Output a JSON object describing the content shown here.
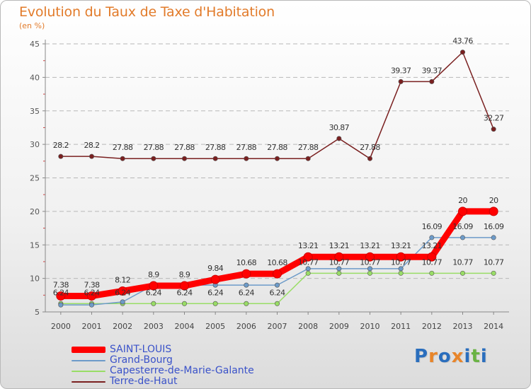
{
  "header": {
    "title": "Evolution du Taux de Taxe d'Habitation",
    "unit": "(en %)"
  },
  "chart_data": {
    "type": "line",
    "x": [
      "2000",
      "2001",
      "2002",
      "2003",
      "2004",
      "2005",
      "2006",
      "2007",
      "2008",
      "2009",
      "2010",
      "2011",
      "2012",
      "2013",
      "2014"
    ],
    "ylim": [
      5,
      45
    ],
    "yticks": [
      5,
      10,
      15,
      20,
      25,
      30,
      35,
      40,
      45
    ],
    "grid": "horizontal-dashed",
    "legend_position": "bottom-left",
    "series": [
      {
        "name": "SAINT-LOUIS",
        "color": "#ff0000",
        "values": [
          7.38,
          7.38,
          8.12,
          8.9,
          8.9,
          9.84,
          10.68,
          10.68,
          13.21,
          13.21,
          13.21,
          13.21,
          13.21,
          20,
          20
        ],
        "labels": [
          "7.38",
          "7.38",
          "8.12",
          "8.9",
          "8.9",
          "9.84",
          "10.68",
          "10.68",
          "13.21",
          "13.21",
          "13.21",
          "13.21",
          "13.21",
          "20",
          "20"
        ]
      },
      {
        "name": "Grand-Bourg",
        "color": "#6d9bc9",
        "values": [
          6.04,
          6.04,
          6.49,
          9.0,
          9.0,
          9.0,
          9.0,
          9.0,
          11.45,
          11.45,
          11.45,
          11.45,
          16.09,
          16.09,
          16.09
        ],
        "labels": [
          "",
          "",
          "",
          "",
          "",
          "",
          "",
          "",
          "",
          "",
          "",
          "",
          "16.09",
          "16.09",
          "16.09"
        ]
      },
      {
        "name": "Capesterre-de-Marie-Galante",
        "color": "#99dd66",
        "values": [
          6.24,
          6.24,
          6.24,
          6.24,
          6.24,
          6.24,
          6.24,
          6.24,
          10.77,
          10.77,
          10.77,
          10.77,
          10.77,
          10.77,
          10.77
        ],
        "labels": [
          "6.24",
          "6.24",
          "6.24",
          "6.24",
          "6.24",
          "6.24",
          "6.24",
          "6.24",
          "10.77",
          "10.77",
          "10.77",
          "10.77",
          "10.77",
          "10.77",
          "10.77"
        ]
      },
      {
        "name": "Terre-de-Haut",
        "color": "#7a2020",
        "values": [
          28.2,
          28.2,
          27.88,
          27.88,
          27.88,
          27.88,
          27.88,
          27.88,
          27.88,
          30.87,
          27.88,
          39.37,
          39.37,
          43.76,
          32.27
        ],
        "labels": [
          "28.2",
          "28.2",
          "27.88",
          "27.88",
          "27.88",
          "27.88",
          "27.88",
          "27.88",
          "27.88",
          "30.87",
          "27.88",
          "39.37",
          "39.37",
          "43.76",
          "32.27"
        ]
      }
    ]
  },
  "logo": {
    "letters": [
      "P",
      "r",
      "o",
      "x",
      "i",
      "t",
      "i"
    ],
    "colors": [
      "#2a6ebd",
      "#e8852a",
      "#2a6ebd",
      "#e8852a",
      "#2a6ebd",
      "#6ab344",
      "#2a6ebd"
    ]
  }
}
